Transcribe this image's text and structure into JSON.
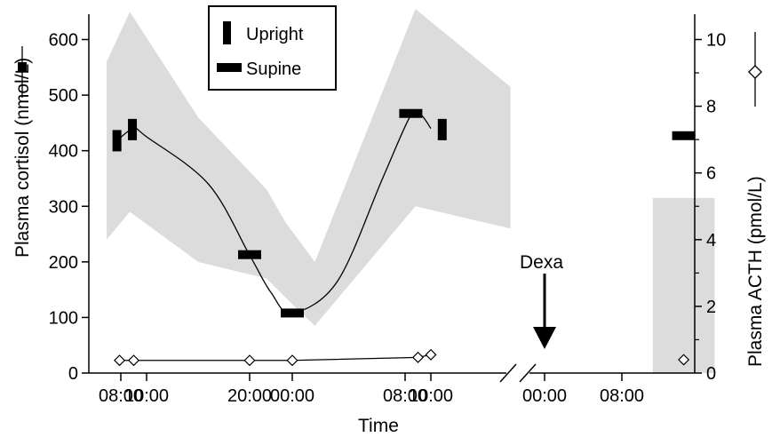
{
  "chart_data": {
    "type": "line",
    "xlabel": "Time",
    "ylabel_left": "Plasma cortisol (nmol/L)",
    "ylabel_right": "Plasma ACTH (pmol/L)",
    "ylim_left": [
      0,
      650
    ],
    "ylim_right": [
      0,
      10.6
    ],
    "yticks_left": [
      "0",
      "100",
      "200",
      "300",
      "400",
      "500",
      "600"
    ],
    "yticks_right": [
      "0",
      "2",
      "4",
      "6",
      "8",
      "10"
    ],
    "xticks": [
      "08:00",
      "10:00",
      "20:00",
      "00:00",
      "08:00",
      "10:00",
      "00:00",
      "08:00"
    ],
    "grid": false,
    "legend": {
      "placement": "top-center",
      "entries": [
        {
          "label": "Upright",
          "marker": "vertical-bar"
        },
        {
          "label": "Supine",
          "marker": "horizontal-bar"
        }
      ]
    },
    "annotation": {
      "text": "Dexa",
      "at_tick": 6,
      "arrow": "down"
    },
    "axis_break": "between 10:00 and 00:00 (second day)",
    "cortisol_reference_range": [
      {
        "tick": -0.55,
        "low": 240,
        "high": 560
      },
      {
        "tick": 0.35,
        "low": 290,
        "high": 650
      },
      {
        "tick": 1.5,
        "low": 200,
        "high": 460
      },
      {
        "tick": 2.4,
        "low": 170,
        "high": 330
      },
      {
        "tick": 2.85,
        "low": 135,
        "high": 270
      },
      {
        "tick": 3.2,
        "low": 85,
        "high": 200
      },
      {
        "tick": 4.4,
        "low": 300,
        "high": 655
      },
      {
        "tick": 5.7,
        "low": 260,
        "high": 515
      }
    ],
    "cortisol_reference_range_after_dexa": {
      "tick_start": 7.4,
      "tick_end": 8.2,
      "high": 315
    },
    "cortisol_samples": [
      {
        "tick": -0.15,
        "value": 418,
        "posture": "Upright"
      },
      {
        "tick": 0.45,
        "value": 438,
        "posture": "Upright"
      },
      {
        "tick": 2.0,
        "value": 213,
        "posture": "Supine"
      },
      {
        "tick": 3.0,
        "value": 108,
        "posture": "Supine"
      },
      {
        "tick": 4.22,
        "value": 467,
        "posture": "Supine"
      },
      {
        "tick": 5.1,
        "value": 438,
        "posture": "Upright"
      },
      {
        "tick": 7.8,
        "value": 427,
        "posture": "Supine"
      }
    ],
    "cortisol_fit_curve": [
      {
        "tick": -0.1,
        "value": 420
      },
      {
        "tick": 0.5,
        "value": 440
      },
      {
        "tick": 1.0,
        "value": 425
      },
      {
        "tick": 1.6,
        "value": 340
      },
      {
        "tick": 2.0,
        "value": 212
      },
      {
        "tick": 2.5,
        "value": 145
      },
      {
        "tick": 3.0,
        "value": 108
      },
      {
        "tick": 3.4,
        "value": 165
      },
      {
        "tick": 3.8,
        "value": 350
      },
      {
        "tick": 4.2,
        "value": 462
      },
      {
        "tick": 4.6,
        "value": 465
      },
      {
        "tick": 5.0,
        "value": 440
      }
    ],
    "acth_series": {
      "name": "Plasma ACTH (pmol/L)",
      "points": [
        {
          "tick": -0.05,
          "value": 0.38
        },
        {
          "tick": 0.5,
          "value": 0.38
        },
        {
          "tick": 2.0,
          "value": 0.38
        },
        {
          "tick": 3.0,
          "value": 0.38
        },
        {
          "tick": 4.5,
          "value": 0.47
        },
        {
          "tick": 5.0,
          "value": 0.55
        }
      ],
      "after_dexa": [
        {
          "tick": 7.8,
          "value": 0.4
        }
      ]
    }
  }
}
